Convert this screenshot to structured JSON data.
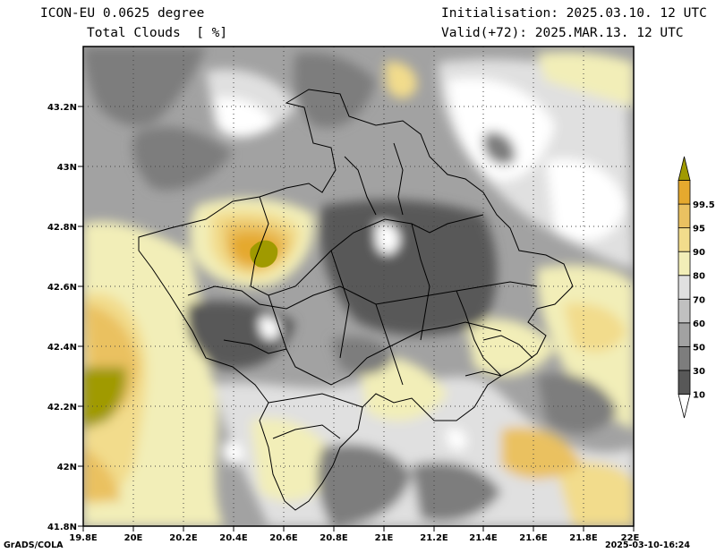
{
  "header": {
    "model": "ICON-EU 0.0625 degree",
    "variable": "Total Clouds  [ %]",
    "init": "Initialisation: 2025.03.10. 12 UTC",
    "valid": "Valid(+72): 2025.MAR.13. 12 UTC"
  },
  "axes": {
    "lon_labels": [
      "19.8E",
      "20E",
      "20.2E",
      "20.4E",
      "20.6E",
      "20.8E",
      "21E",
      "21.2E",
      "21.4E",
      "21.6E",
      "21.8E",
      "22E"
    ],
    "lat_labels": [
      "41.8N",
      "42N",
      "42.2N",
      "42.4N",
      "42.6N",
      "42.8N",
      "43N",
      "43.2N"
    ],
    "lon_range": [
      19.8,
      22.0
    ],
    "lat_range": [
      41.8,
      43.4
    ]
  },
  "colorbar": {
    "levels": [
      "10",
      "30",
      "50",
      "60",
      "70",
      "80",
      "90",
      "95",
      "99.5"
    ],
    "colors": [
      "#ffffff",
      "#585858",
      "#7d7d7d",
      "#a2a2a2",
      "#c0c0c0",
      "#e0e0e0",
      "#f2eeb8",
      "#f2dc8c",
      "#eac161",
      "#e5a92e",
      "#a09a00"
    ]
  },
  "footer": {
    "left": "GrADS/COLA",
    "right": "2025-03-10-16:24"
  }
}
